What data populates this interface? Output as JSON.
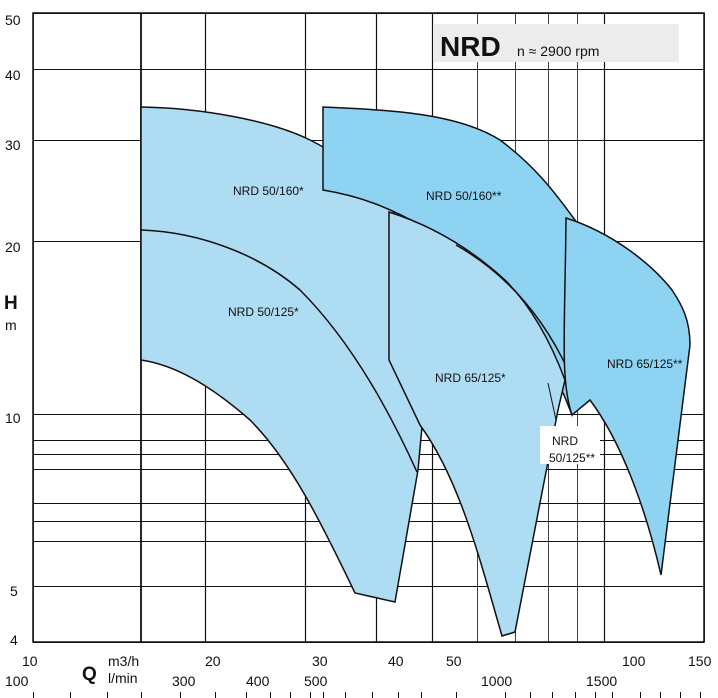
{
  "chart_data": {
    "type": "area",
    "title_main": "NRD",
    "title_sub": "n ≈ 2900 rpm",
    "y_axis": {
      "label": "H",
      "unit": "m",
      "scale": "log",
      "range": [
        4,
        50
      ],
      "tick_labels": [
        "4",
        "5",
        "10",
        "20",
        "30",
        "40",
        "50"
      ],
      "gridlines": [
        4,
        5,
        6,
        6.5,
        7,
        8,
        8.5,
        9,
        10,
        20,
        30,
        40,
        50
      ]
    },
    "x_axis": {
      "label": "Q",
      "scale": "log",
      "primary_unit": "m3/h",
      "primary_range": [
        10,
        150
      ],
      "primary_tick_labels": [
        "10",
        "20",
        "30",
        "40",
        "50",
        "100",
        "150"
      ],
      "secondary_unit": "l/min",
      "secondary_tick_labels": [
        "100",
        "300",
        "400",
        "500",
        "1000",
        "1500"
      ],
      "gridlines_m3h": [
        10,
        20,
        30,
        40,
        50,
        60,
        70,
        80,
        90,
        100,
        150
      ]
    },
    "grid": true,
    "series": [
      {
        "name": "NRD 50/160*",
        "color": "#aedcf3",
        "outline": [
          [
            14.4,
            34.5
          ],
          [
            21,
            32.5
          ],
          [
            30,
            29
          ],
          [
            36,
            24
          ],
          [
            41,
            18.5
          ],
          [
            44,
            14.5
          ],
          [
            40.5,
            4.85
          ],
          [
            34.3,
            5.05
          ],
          [
            27.8,
            8
          ],
          [
            22,
            11
          ],
          [
            18,
            12.4
          ],
          [
            14.4,
            13
          ]
        ]
      },
      {
        "name": "NRD 50/125*",
        "color": "#aedcf3",
        "outline": [
          [
            14.4,
            21.5
          ],
          [
            22,
            19.2
          ],
          [
            30,
            16
          ],
          [
            36,
            12
          ],
          [
            41.5,
            7.2
          ]
        ]
      },
      {
        "name": "NRD 50/160**",
        "color": "#8fd3f2",
        "outline": [
          [
            30,
            34.5
          ],
          [
            40,
            33.5
          ],
          [
            52,
            30
          ],
          [
            65,
            24
          ],
          [
            78,
            17.5
          ],
          [
            88,
            14
          ],
          [
            86,
            12
          ],
          [
            82,
            10.6
          ]
        ]
      },
      {
        "name": "NRD 65/125*",
        "color": "#aedcf3",
        "outline": [
          [
            40,
            22.5
          ],
          [
            50,
            20.6
          ],
          [
            60,
            17
          ],
          [
            70,
            13
          ],
          [
            74,
            10.5
          ],
          [
            67,
            4.2
          ],
          [
            64,
            4.05
          ],
          [
            56,
            7.5
          ],
          [
            44,
            9
          ],
          [
            40,
            10.5
          ]
        ]
      },
      {
        "name": "NRD 50/125**",
        "color": "#8fd3f2",
        "outline": [
          [
            53,
            21
          ],
          [
            64,
            18.2
          ],
          [
            73,
            14
          ],
          [
            80,
            11.3
          ]
        ]
      },
      {
        "name": "NRD 65/125**",
        "color": "#8fd3f2",
        "outline": [
          [
            79,
            22.5
          ],
          [
            98,
            20
          ],
          [
            118,
            16
          ],
          [
            140,
            13.5
          ],
          [
            122,
            5.3
          ],
          [
            110,
            8.4
          ],
          [
            95,
            10.8
          ],
          [
            84,
            11.5
          ]
        ]
      }
    ],
    "labels": [
      {
        "text": "NRD 50/160*",
        "series": 0
      },
      {
        "text": "NRD 50/125*",
        "series": 1
      },
      {
        "text": "NRD 50/160**",
        "series": 2
      },
      {
        "text": "NRD 65/125*",
        "series": 3
      },
      {
        "text": "NRD",
        "series": 4
      },
      {
        "text": "50/125**",
        "series": 4
      },
      {
        "text": "NRD 65/125**",
        "series": 5
      }
    ]
  }
}
